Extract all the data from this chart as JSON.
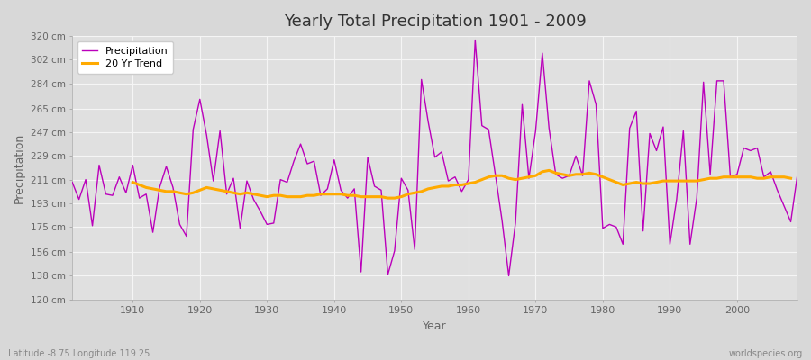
{
  "title": "Yearly Total Precipitation 1901 - 2009",
  "xlabel": "Year",
  "ylabel": "Precipitation",
  "subtitle": "Latitude -8.75 Longitude 119.25",
  "watermark": "worldspecies.org",
  "years": [
    1901,
    1902,
    1903,
    1904,
    1905,
    1906,
    1907,
    1908,
    1909,
    1910,
    1911,
    1912,
    1913,
    1914,
    1915,
    1916,
    1917,
    1918,
    1919,
    1920,
    1921,
    1922,
    1923,
    1924,
    1925,
    1926,
    1927,
    1928,
    1929,
    1930,
    1931,
    1932,
    1933,
    1934,
    1935,
    1936,
    1937,
    1938,
    1939,
    1940,
    1941,
    1942,
    1943,
    1944,
    1945,
    1946,
    1947,
    1948,
    1949,
    1950,
    1951,
    1952,
    1953,
    1954,
    1955,
    1956,
    1957,
    1958,
    1959,
    1960,
    1961,
    1962,
    1963,
    1964,
    1965,
    1966,
    1967,
    1968,
    1969,
    1970,
    1971,
    1972,
    1973,
    1974,
    1975,
    1976,
    1977,
    1978,
    1979,
    1980,
    1981,
    1982,
    1983,
    1984,
    1985,
    1986,
    1987,
    1988,
    1989,
    1990,
    1991,
    1992,
    1993,
    1994,
    1995,
    1996,
    1997,
    1998,
    1999,
    2000,
    2001,
    2002,
    2003,
    2004,
    2005,
    2006,
    2007,
    2008,
    2009
  ],
  "precipitation": [
    209,
    196,
    211,
    176,
    222,
    200,
    199,
    213,
    201,
    222,
    197,
    200,
    171,
    205,
    221,
    205,
    177,
    168,
    249,
    272,
    245,
    210,
    248,
    200,
    212,
    174,
    210,
    196,
    187,
    177,
    178,
    211,
    209,
    225,
    238,
    223,
    225,
    199,
    204,
    226,
    203,
    197,
    204,
    141,
    228,
    206,
    203,
    139,
    157,
    212,
    203,
    158,
    287,
    255,
    228,
    232,
    210,
    213,
    202,
    211,
    317,
    252,
    249,
    215,
    180,
    138,
    178,
    268,
    212,
    248,
    307,
    250,
    215,
    212,
    214,
    229,
    214,
    286,
    268,
    174,
    177,
    175,
    162,
    250,
    263,
    172,
    246,
    233,
    251,
    162,
    196,
    248,
    162,
    197,
    285,
    215,
    286,
    286,
    213,
    215,
    235,
    233,
    235,
    213,
    217,
    203,
    191,
    179,
    215
  ],
  "trend": [
    null,
    null,
    null,
    null,
    null,
    null,
    null,
    null,
    null,
    209,
    207,
    205,
    204,
    203,
    202,
    202,
    201,
    200,
    201,
    203,
    205,
    204,
    203,
    202,
    201,
    200,
    201,
    200,
    199,
    198,
    199,
    199,
    198,
    198,
    198,
    199,
    199,
    200,
    200,
    200,
    200,
    199,
    199,
    198,
    198,
    198,
    198,
    197,
    197,
    198,
    200,
    201,
    202,
    204,
    205,
    206,
    206,
    207,
    207,
    208,
    209,
    211,
    213,
    214,
    214,
    212,
    211,
    212,
    213,
    214,
    217,
    218,
    216,
    215,
    214,
    215,
    215,
    216,
    215,
    213,
    211,
    209,
    207,
    208,
    209,
    208,
    208,
    209,
    210,
    210,
    210,
    210,
    210,
    210,
    211,
    212,
    212,
    213,
    213,
    213,
    213,
    213,
    212,
    212,
    213,
    213,
    213,
    212,
    null
  ],
  "precip_color": "#bb00bb",
  "trend_color": "#ffaa00",
  "bg_color": "#d8d8d8",
  "plot_bg_color": "#e0e0e0",
  "grid_color": "#f5f5f5",
  "ylim": [
    120,
    320
  ],
  "yticks": [
    120,
    138,
    156,
    175,
    193,
    211,
    229,
    247,
    265,
    284,
    302,
    320
  ],
  "ytick_labels": [
    "120 cm",
    "138 cm",
    "156 cm",
    "175 cm",
    "193 cm",
    "211 cm",
    "229 cm",
    "247 cm",
    "265 cm",
    "284 cm",
    "302 cm",
    "320 cm"
  ],
  "xticks": [
    1910,
    1920,
    1930,
    1940,
    1950,
    1960,
    1970,
    1980,
    1990,
    2000
  ],
  "xlim": [
    1901,
    2009
  ]
}
